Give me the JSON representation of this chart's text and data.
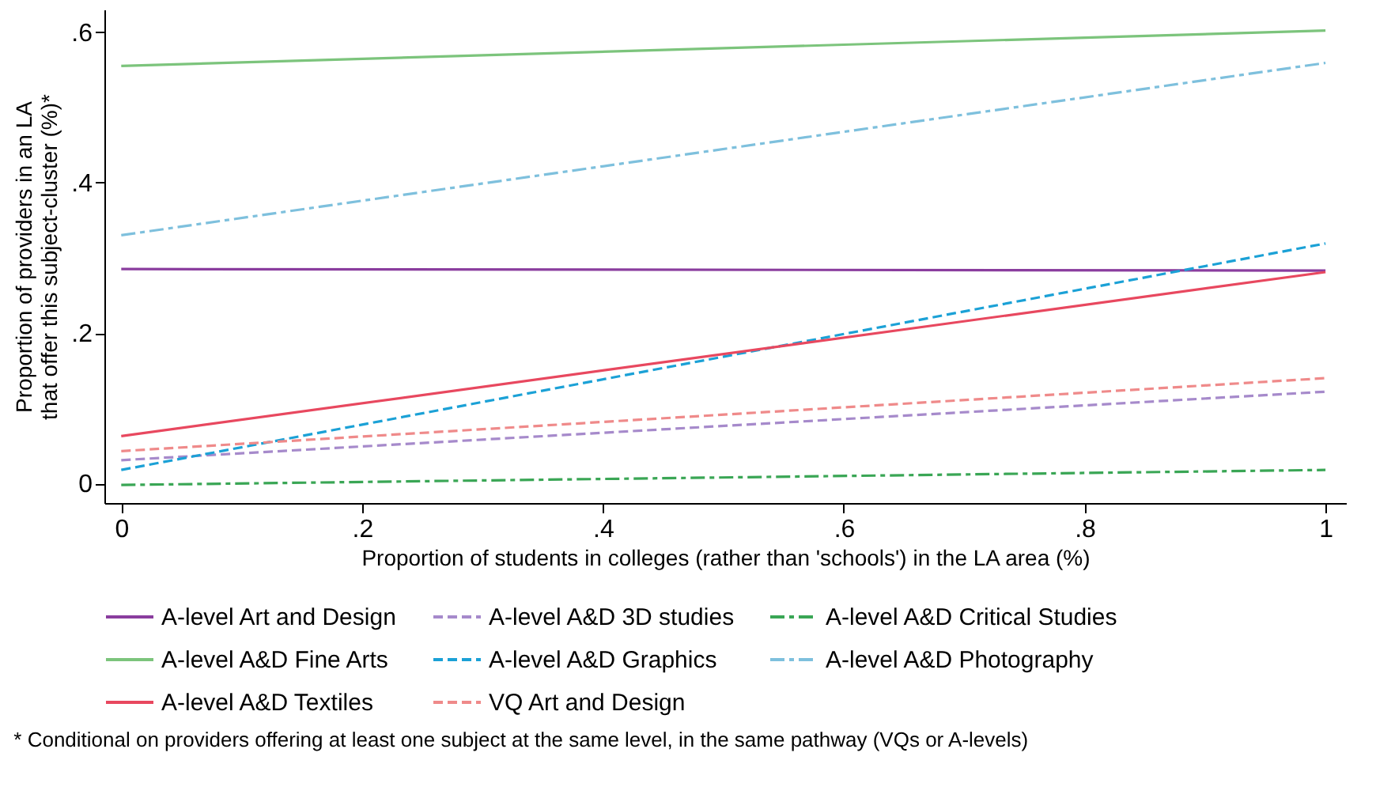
{
  "chart_data": {
    "type": "line",
    "xlabel": "Proportion of students in colleges (rather than 'schools') in the LA area (%)",
    "ylabel": "Proportion of providers in an LA that offer this subject-cluster (%)*",
    "annotations": [
      "* Conditional on providers offering at least one subject at the same level, in the same pathway (VQs or A-levels)"
    ],
    "xlim": [
      -0.014,
      1.017
    ],
    "ylim": [
      -0.026,
      0.63
    ],
    "xticks": [
      0,
      {
        "value": 0.2,
        "label": ".2"
      },
      {
        "value": 0.4,
        "label": ".4"
      },
      {
        "value": 0.6,
        "label": ".6"
      },
      {
        "value": 0.8,
        "label": ".8"
      },
      1
    ],
    "yticks": [
      0,
      {
        "value": 0.2,
        "label": ".2"
      },
      {
        "value": 0.4,
        "label": ".4"
      },
      {
        "value": 0.6,
        "label": ".6"
      }
    ],
    "legend": "bottom",
    "grid": false,
    "x": [
      0,
      1
    ],
    "series": [
      {
        "name": "A-level Art and Design",
        "color": "#8a3d9e",
        "line_style": "solid",
        "values": [
          0.285,
          0.283
        ]
      },
      {
        "name": "A-level A&D 3D studies",
        "color": "#a68acb",
        "line_style": "dashed",
        "values": [
          0.031,
          0.122
        ]
      },
      {
        "name": "A-level A&D Critical Studies",
        "color": "#3aa655",
        "line_style": "dashdot",
        "values": [
          -0.002,
          0.018
        ]
      },
      {
        "name": "A-level A&D Fine Arts",
        "color": "#7cc47c",
        "line_style": "solid",
        "values": [
          0.555,
          0.602
        ]
      },
      {
        "name": "A-level A&D Graphics",
        "color": "#1ba1d6",
        "line_style": "dashed",
        "values": [
          0.018,
          0.319
        ]
      },
      {
        "name": "A-level A&D Photography",
        "color": "#7ec0dd",
        "line_style": "dashdot",
        "values": [
          0.33,
          0.559
        ]
      },
      {
        "name": "A-level A&D Textiles",
        "color": "#e8485f",
        "line_style": "solid",
        "values": [
          0.063,
          0.281
        ]
      },
      {
        "name": "VQ Art and Design",
        "color": "#ef8a8a",
        "line_style": "dashed",
        "values": [
          0.043,
          0.14
        ]
      }
    ]
  }
}
